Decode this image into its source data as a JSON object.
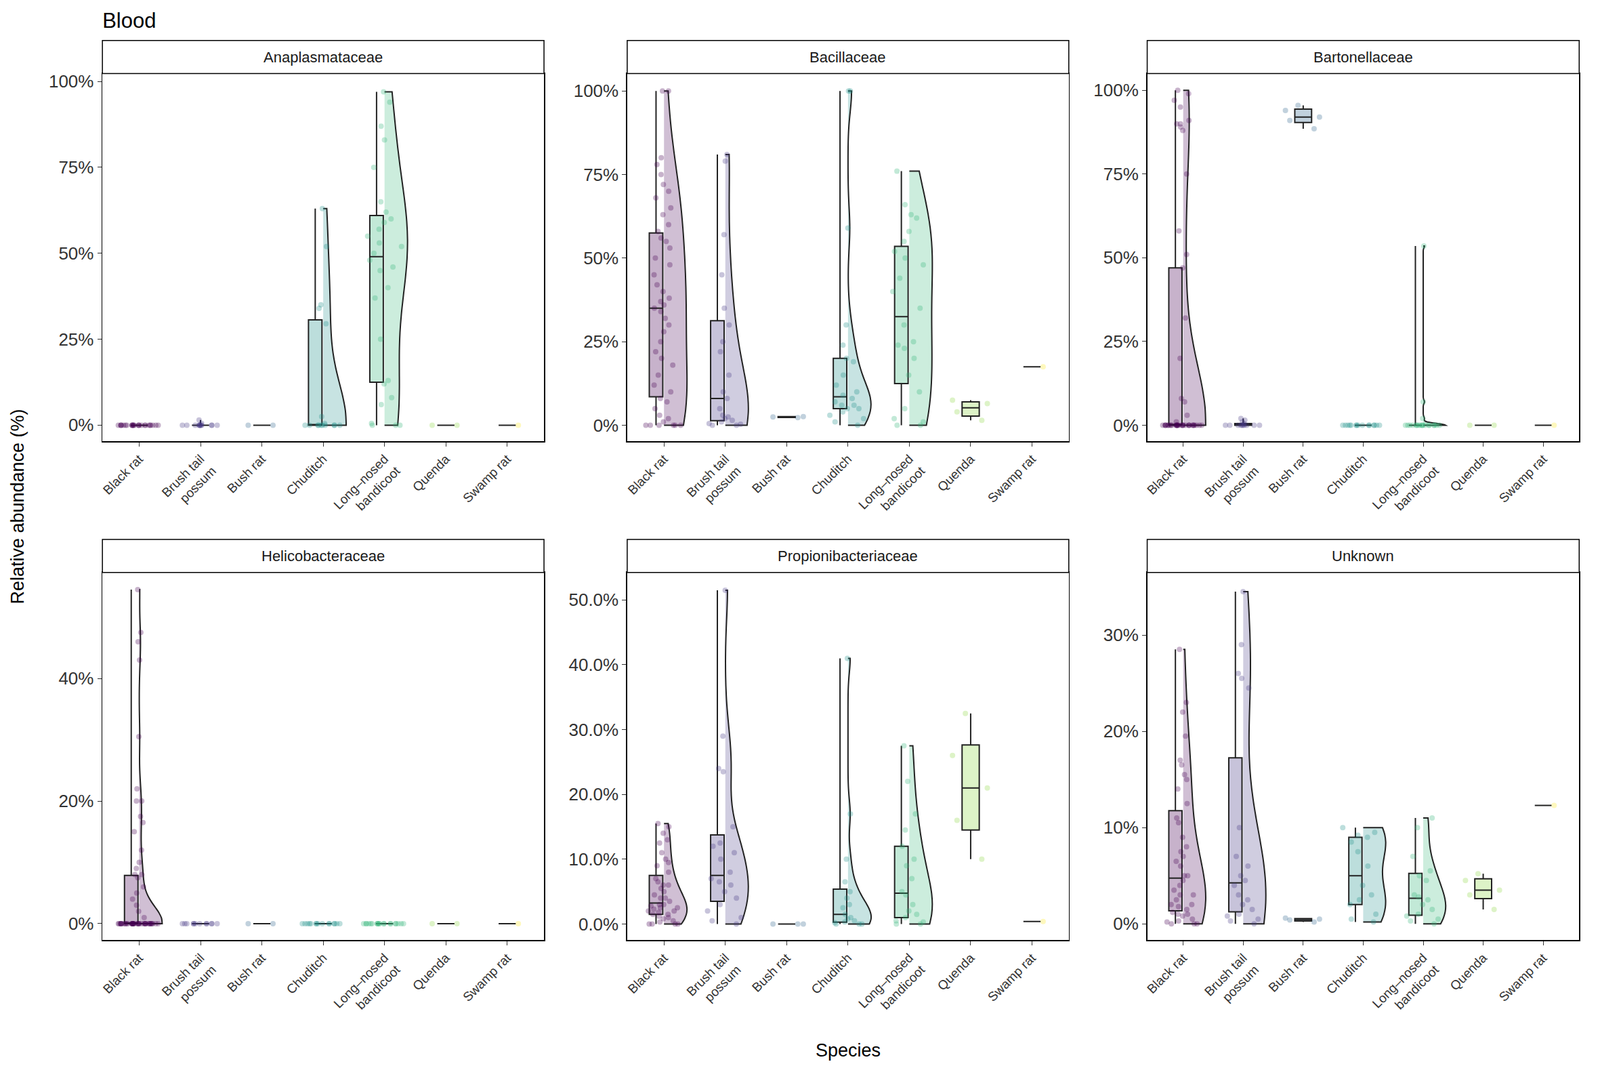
{
  "chart_data": {
    "title": "Blood",
    "x_label": "Species",
    "y_label": "Relative abundance (%)",
    "grid": false,
    "categories": [
      "Black rat",
      "Brush tail\npossum",
      "Bush rat",
      "Chuditch",
      "Long–nosed\nbandicoot",
      "Quenda",
      "Swamp rat"
    ],
    "colors": [
      "#440154",
      "#443983",
      "#31688E",
      "#21918C",
      "#35B779",
      "#8FD744",
      "#FDE725"
    ],
    "panels": [
      {
        "type": "box",
        "title": "Anaplasmataceae",
        "ylim": [
          -4.7,
          102.3
        ],
        "yticks": [
          {
            "value": 0,
            "label": "0%"
          },
          {
            "value": 25,
            "label": "25%"
          },
          {
            "value": 50,
            "label": "50%"
          },
          {
            "value": 75,
            "label": "75%"
          },
          {
            "value": 100,
            "label": "100%"
          }
        ],
        "series": [
          {
            "type": "box",
            "values": [
              0,
              0,
              0,
              0,
              0,
              0,
              0,
              0,
              0,
              0,
              0,
              0,
              0,
              0,
              0,
              0,
              0,
              0,
              0,
              0,
              0,
              0,
              0,
              0,
              0
            ]
          },
          {
            "type": "box",
            "values": [
              0,
              0,
              0,
              0,
              0,
              0,
              0,
              0,
              0,
              0,
              1.5,
              0.5,
              0,
              0
            ]
          },
          {
            "type": "box",
            "values": [
              0,
              0
            ]
          },
          {
            "type": "violin",
            "values": [
              0,
              0,
              0,
              0,
              0,
              0,
              0,
              0,
              0,
              0,
              52,
              35,
              34,
              29.5,
              2.5,
              63,
              0.5
            ]
          },
          {
            "type": "violin",
            "values": [
              97,
              94,
              87,
              83,
              75,
              65,
              62,
              60,
              57,
              55,
              53,
              52,
              50,
              48,
              45,
              40,
              37,
              25,
              13,
              12,
              8,
              6,
              0,
              0,
              0,
              0.5,
              46,
              59
            ]
          },
          {
            "type": "box",
            "values": [
              0,
              0
            ]
          },
          {
            "type": "box",
            "values": [
              0
            ]
          }
        ]
      },
      {
        "type": "box",
        "title": "Bacillaceae",
        "ylim": [
          -4.8,
          105.2
        ],
        "yticks": [
          {
            "value": 0,
            "label": "0%"
          },
          {
            "value": 25,
            "label": "25%"
          },
          {
            "value": 50,
            "label": "50%"
          },
          {
            "value": 75,
            "label": "75%"
          },
          {
            "value": 100,
            "label": "100%"
          }
        ],
        "series": [
          {
            "type": "violin",
            "values": [
              100,
              100,
              80,
              78,
              75,
              72,
              70,
              68,
              65,
              63,
              60,
              58,
              56,
              55,
              53,
              50,
              48,
              45,
              42,
              40,
              38,
              37,
              36,
              35,
              34,
              32,
              30,
              28,
              25,
              22,
              20,
              18,
              15,
              12,
              10,
              8,
              7,
              5,
              3,
              2,
              1,
              0,
              0,
              0,
              0,
              0,
              0
            ]
          },
          {
            "type": "violin",
            "values": [
              81,
              79,
              57,
              45,
              35,
              30,
              25,
              22,
              15,
              10,
              5,
              3,
              2.5,
              2,
              1,
              0.5,
              0,
              0.3,
              1.5,
              8,
              0
            ]
          },
          {
            "type": "box",
            "values": [
              2.3,
              2.5,
              2.6
            ]
          },
          {
            "type": "violin",
            "values": [
              100,
              100,
              59,
              24,
              20,
              19,
              15,
              12,
              10,
              9,
              8,
              7,
              6,
              6,
              5,
              5,
              4,
              3,
              2,
              1,
              0,
              30
            ]
          },
          {
            "type": "violin",
            "values": [
              76,
              66,
              63,
              58,
              55,
              52,
              50,
              48,
              44,
              40,
              35,
              30,
              25,
              23,
              20,
              15,
              10,
              5,
              2,
              1,
              0,
              0,
              62,
              24
            ]
          },
          {
            "type": "box",
            "values": [
              1.5,
              4,
              6.5,
              7.5
            ]
          },
          {
            "type": "box",
            "values": [
              17.5
            ]
          }
        ]
      },
      {
        "type": "box",
        "title": "Bartonellaceae",
        "ylim": [
          -4.8,
          105
        ],
        "yticks": [
          {
            "value": 0,
            "label": "0%"
          },
          {
            "value": 25,
            "label": "25%"
          },
          {
            "value": 50,
            "label": "50%"
          },
          {
            "value": 75,
            "label": "75%"
          },
          {
            "value": 100,
            "label": "100%"
          }
        ],
        "series": [
          {
            "type": "violin",
            "values": [
              100,
              99,
              97,
              95,
              91,
              90,
              90,
              89,
              88,
              75,
              58,
              51,
              47,
              32,
              20,
              8,
              7,
              3,
              1,
              0,
              0,
              0,
              0,
              0,
              0,
              0,
              0,
              0,
              0,
              0,
              0,
              0,
              0,
              0,
              0,
              0,
              0,
              0,
              0,
              0,
              0,
              0,
              0,
              0,
              0,
              0,
              0,
              0,
              0,
              0
            ]
          },
          {
            "type": "box",
            "values": [
              0,
              0,
              0,
              0,
              0,
              0,
              0,
              0,
              0,
              0,
              0.5,
              1,
              1.5,
              2
            ]
          },
          {
            "type": "box",
            "values": [
              88.5,
              91,
              92,
              94,
              95.5
            ]
          },
          {
            "type": "box",
            "values": [
              0,
              0,
              0,
              0,
              0,
              0,
              0,
              0,
              0,
              0,
              0,
              0,
              0,
              0,
              0
            ]
          },
          {
            "type": "violin",
            "values": [
              53.5,
              7,
              2,
              0,
              0,
              0,
              0,
              0,
              0,
              0,
              0,
              0,
              0,
              0,
              0,
              0,
              0,
              0,
              0,
              0,
              0
            ]
          },
          {
            "type": "box",
            "values": [
              0,
              0
            ]
          },
          {
            "type": "box",
            "values": [
              0
            ]
          }
        ]
      },
      {
        "type": "box",
        "title": "Helicobacteraceae",
        "ylim": [
          -2.7,
          57.3
        ],
        "yticks": [
          {
            "value": 0,
            "label": "0%"
          },
          {
            "value": 20,
            "label": "20%"
          },
          {
            "value": 40,
            "label": "40%"
          }
        ],
        "series": [
          {
            "type": "violin",
            "values": [
              54.5,
              47.5,
              46,
              43,
              30.5,
              22,
              20,
              20,
              17.5,
              16.5,
              15,
              12,
              10,
              9,
              8,
              8,
              7.5,
              6,
              5,
              4,
              3,
              2,
              1,
              0,
              0,
              0,
              0,
              0,
              0,
              0,
              0,
              0,
              0,
              0,
              0,
              0,
              0,
              0,
              0,
              0,
              0,
              0,
              0,
              0,
              0,
              0,
              0,
              0,
              0,
              0,
              0,
              0,
              0,
              0,
              0,
              0,
              0,
              0,
              0,
              0,
              0,
              0,
              0
            ]
          },
          {
            "type": "box",
            "values": [
              0,
              0,
              0,
              0,
              0,
              0,
              0,
              0,
              0,
              0,
              0,
              0
            ]
          },
          {
            "type": "box",
            "values": [
              0,
              0
            ]
          },
          {
            "type": "box",
            "values": [
              0,
              0,
              0,
              0,
              0,
              0,
              0,
              0,
              0,
              0,
              0,
              0,
              0,
              0,
              0
            ]
          },
          {
            "type": "box",
            "values": [
              0,
              0,
              0,
              0,
              0,
              0,
              0,
              0,
              0,
              0,
              0,
              0,
              0,
              0,
              0,
              0,
              0,
              0,
              0,
              0
            ]
          },
          {
            "type": "box",
            "values": [
              0,
              0
            ]
          },
          {
            "type": "box",
            "values": [
              0
            ]
          }
        ]
      },
      {
        "type": "box",
        "title": "Propionibacteriaceae",
        "ylim": [
          -2.5,
          54.25
        ],
        "yticks": [
          {
            "value": 0,
            "label": "0.0%"
          },
          {
            "value": 10,
            "label": "10.0%"
          },
          {
            "value": 20,
            "label": "20.0%"
          },
          {
            "value": 30,
            "label": "30.0%"
          },
          {
            "value": 40,
            "label": "40.0%"
          },
          {
            "value": 50,
            "label": "50.0%"
          }
        ],
        "series": [
          {
            "type": "violin",
            "values": [
              15.5,
              15,
              14,
              13,
              12.5,
              11,
              10,
              9.5,
              9,
              8,
              7,
              6.5,
              6,
              5.5,
              5,
              4.5,
              4,
              3.5,
              3,
              2.8,
              2.5,
              2.3,
              2,
              1.8,
              1.5,
              1.2,
              1,
              0.8,
              0.5,
              0.3,
              0,
              0,
              0,
              0,
              3,
              2.5,
              4,
              1.5,
              2,
              6
            ]
          },
          {
            "type": "violin",
            "values": [
              51.5,
              29,
              24,
              23.5,
              15,
              12.5,
              12,
              10,
              8,
              7,
              6.5,
              6,
              5,
              4,
              3,
              2,
              1,
              0,
              0.5,
              11
            ]
          },
          {
            "type": "box",
            "values": [
              0,
              0,
              0
            ]
          },
          {
            "type": "violin",
            "values": [
              41,
              17,
              10,
              6.5,
              5,
              3,
              2.5,
              1.5,
              1,
              0.8,
              0.5,
              0.3,
              0.2,
              0,
              0,
              0,
              4
            ]
          },
          {
            "type": "violin",
            "values": [
              27.5,
              22,
              17,
              14.5,
              10,
              9,
              7,
              5,
              4.5,
              3,
              2,
              1.5,
              1,
              0.5,
              0.3,
              0,
              0,
              12
            ]
          },
          {
            "type": "box",
            "values": [
              32.5,
              26,
              21,
              16,
              10
            ]
          },
          {
            "type": "box",
            "values": [
              0.4
            ]
          }
        ]
      },
      {
        "type": "box",
        "title": "Unknown",
        "ylim": [
          -1.7,
          36.5
        ],
        "yticks": [
          {
            "value": 0,
            "label": "0%"
          },
          {
            "value": 10,
            "label": "10%"
          },
          {
            "value": 20,
            "label": "20%"
          },
          {
            "value": 30,
            "label": "30%"
          }
        ],
        "series": [
          {
            "type": "violin",
            "values": [
              28.5,
              23,
              22,
              19.5,
              17,
              16.5,
              15.5,
              15,
              14,
              12.5,
              11,
              10.5,
              9,
              8,
              7.5,
              7,
              6.5,
              6,
              5,
              4.5,
              4,
              3.5,
              3,
              2.5,
              2,
              1.8,
              1.5,
              1.2,
              1,
              0.8,
              0.5,
              0.3,
              0.2,
              0,
              0,
              0,
              3,
              2,
              1,
              5
            ]
          },
          {
            "type": "violin",
            "values": [
              34.5,
              29,
              26,
              25.5,
              24.5,
              10,
              7,
              5,
              4.5,
              4,
              3,
              2.5,
              2,
              1.5,
              1,
              0.5,
              0.3,
              0,
              0.8,
              6
            ]
          },
          {
            "type": "box",
            "values": [
              0.2,
              0.4,
              0.5,
              0.6
            ]
          },
          {
            "type": "violin",
            "values": [
              10,
              9.5,
              9,
              8.5,
              7.5,
              6,
              4,
              2.5,
              2,
              1,
              0.5,
              0.2,
              9.2,
              3
            ]
          },
          {
            "type": "violin",
            "values": [
              11,
              10,
              7,
              5.5,
              5,
              4.5,
              3,
              2.5,
              2,
              1.5,
              1,
              0.8,
              0.5,
              0.3,
              0,
              2.8
            ]
          },
          {
            "type": "box",
            "values": [
              1.5,
              3,
              3.5,
              4.5,
              5.2
            ]
          },
          {
            "type": "box",
            "values": [
              12.3
            ]
          }
        ]
      }
    ]
  }
}
